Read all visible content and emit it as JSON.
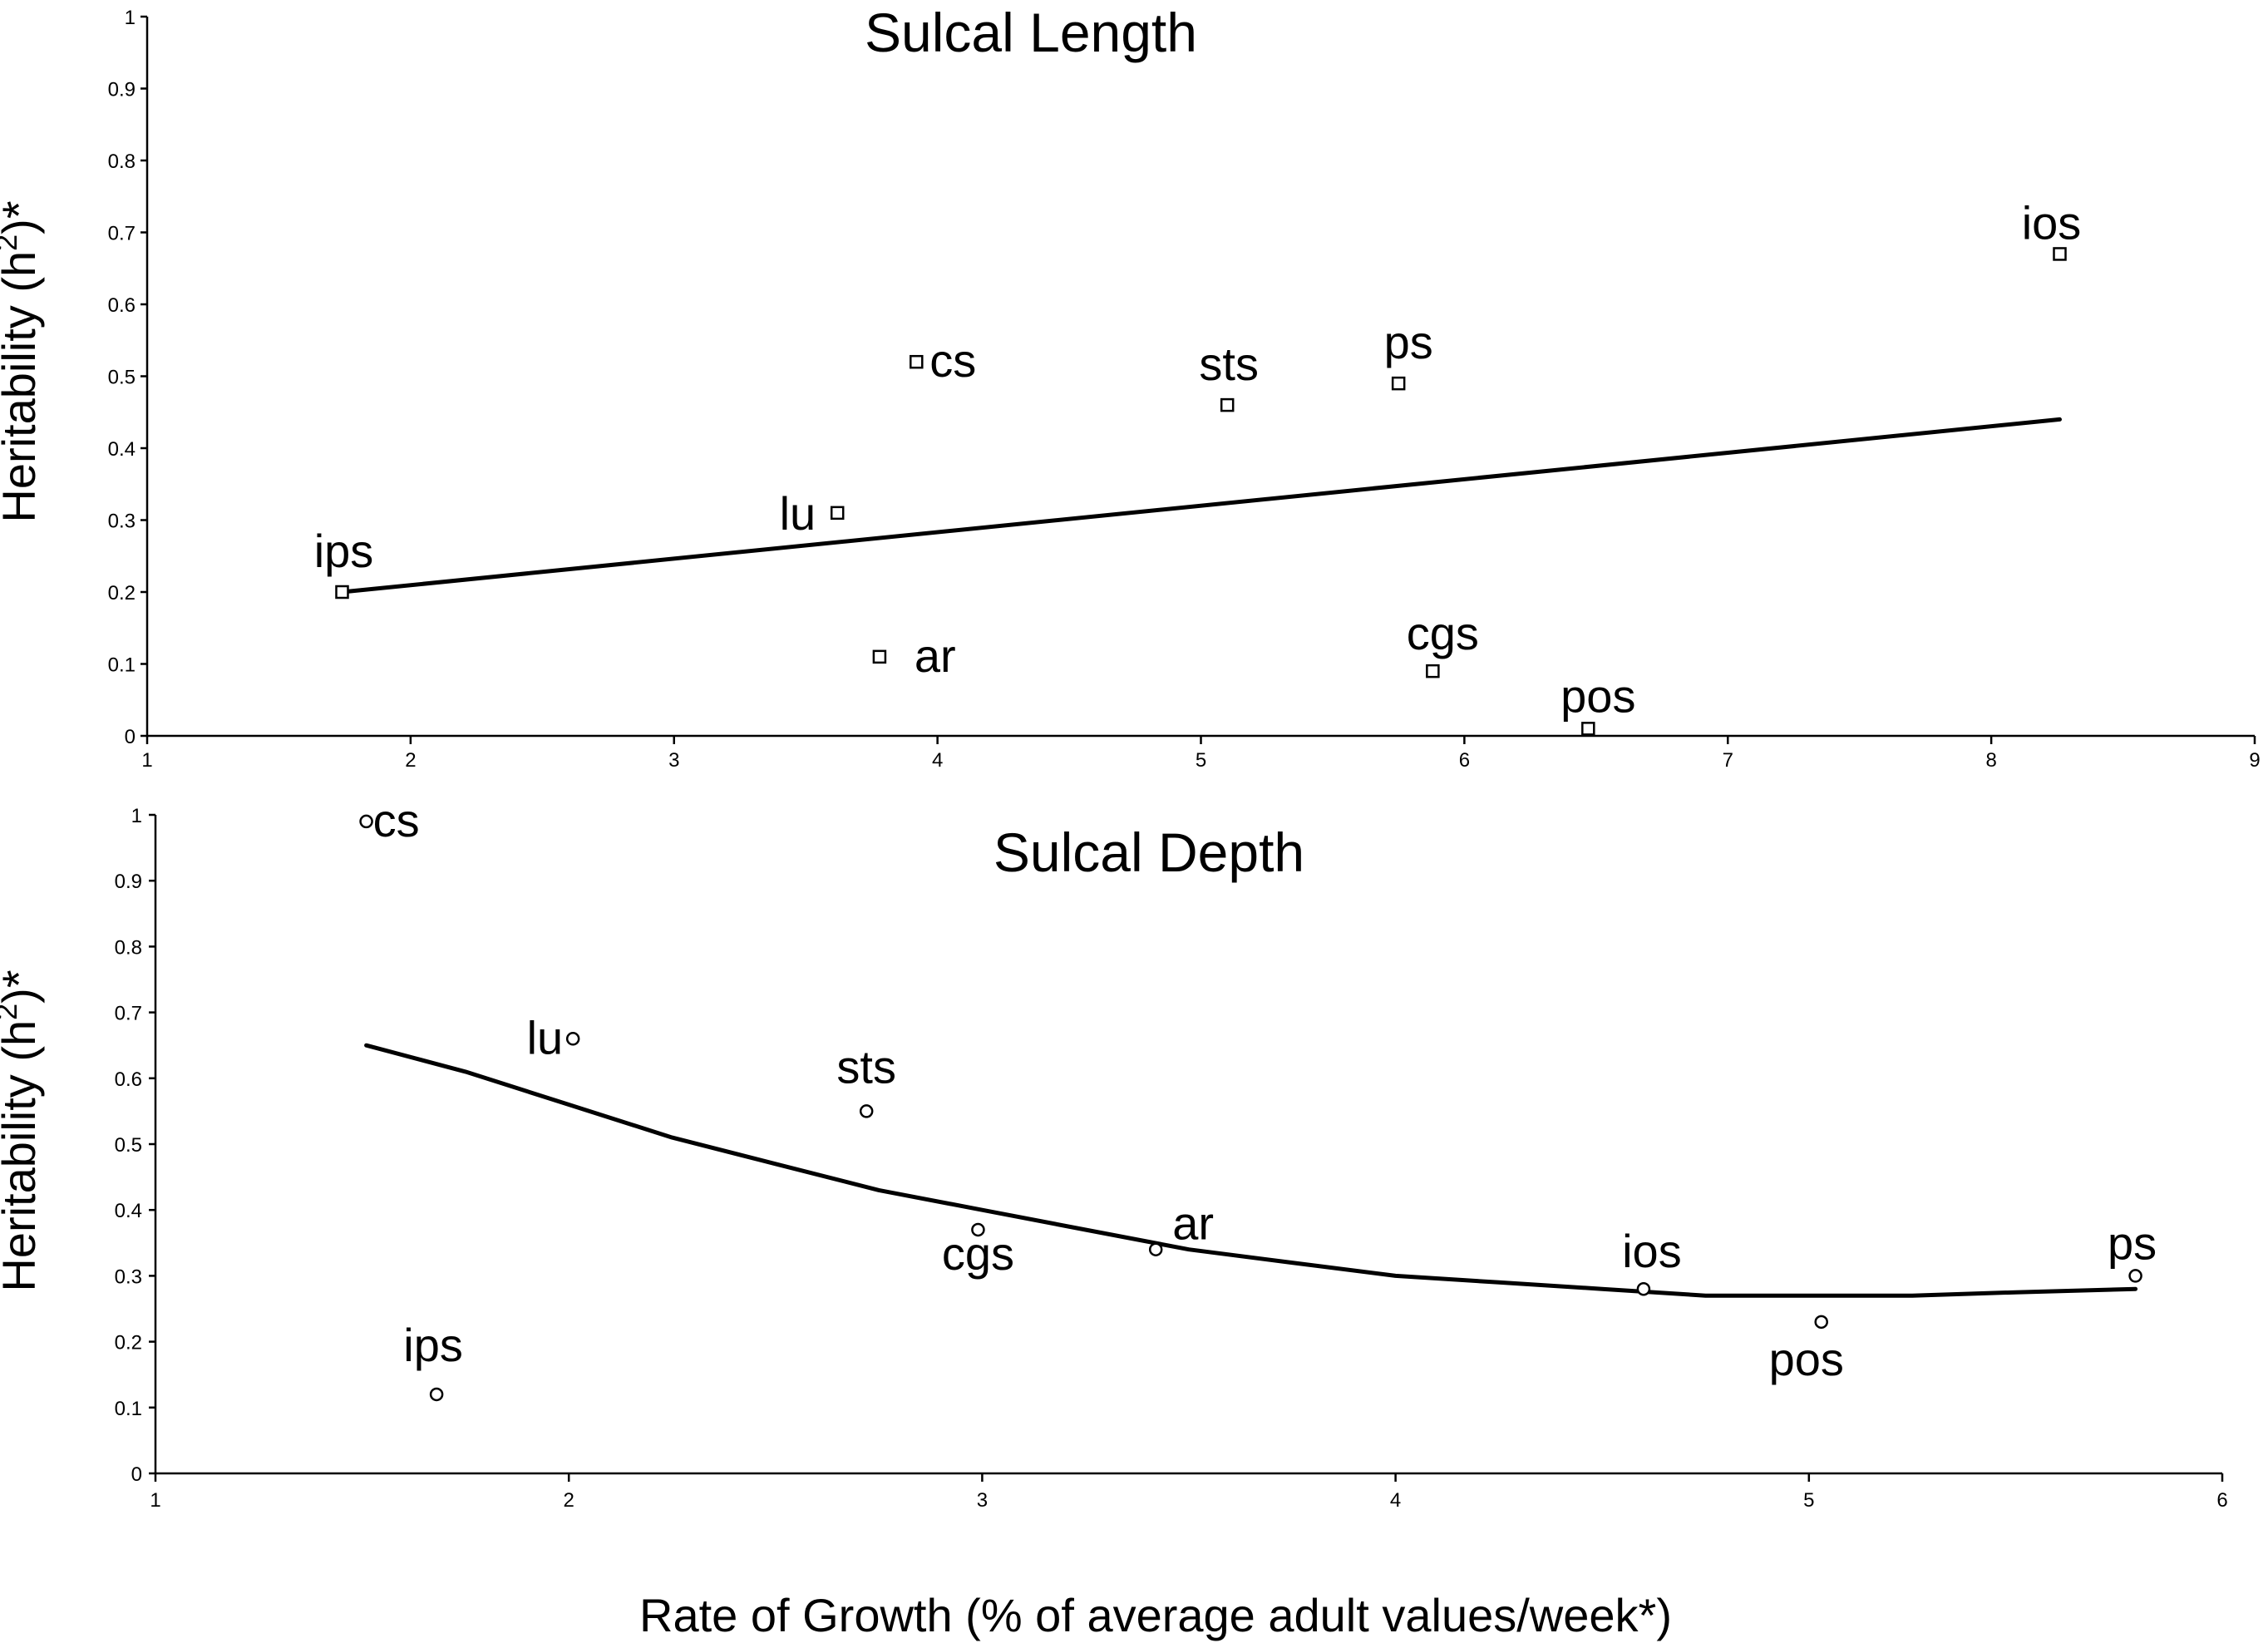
{
  "chart_data": [
    {
      "type": "scatter",
      "title": "Sulcal Length",
      "xlabel": "",
      "ylabel": "Heritability (h²)*",
      "ylabel_parts": {
        "main": "Heritability (h",
        "sup": "2",
        "end": ")*"
      },
      "xlim": [
        1,
        9
      ],
      "ylim": [
        0,
        1
      ],
      "x_ticks": [
        "1",
        "2",
        "3",
        "4",
        "5",
        "6",
        "7",
        "8",
        "9"
      ],
      "y_ticks": [
        "0",
        "0.1",
        "0.2",
        "0.3",
        "0.4",
        "0.5",
        "0.6",
        "0.7",
        "0.8",
        "0.9",
        "1"
      ],
      "marker": "square",
      "points": [
        {
          "label": "ips",
          "x": 1.74,
          "y": 0.2
        },
        {
          "label": "lu",
          "x": 3.62,
          "y": 0.31
        },
        {
          "label": "ar",
          "x": 3.78,
          "y": 0.11
        },
        {
          "label": "cs",
          "x": 3.92,
          "y": 0.52
        },
        {
          "label": "sts",
          "x": 5.1,
          "y": 0.46
        },
        {
          "label": "ps",
          "x": 5.75,
          "y": 0.49
        },
        {
          "label": "cgs",
          "x": 5.88,
          "y": 0.09
        },
        {
          "label": "pos",
          "x": 6.47,
          "y": 0.01
        },
        {
          "label": "ios",
          "x": 8.26,
          "y": 0.67
        }
      ],
      "trendline": {
        "type": "linear",
        "x": [
          1.74,
          8.26
        ],
        "y": [
          0.2,
          0.44
        ]
      }
    },
    {
      "type": "scatter",
      "title": "Sulcal Depth",
      "xlabel": "Rate of Growth (% of average adult values/week*)",
      "ylabel": "Heritability (h²)*",
      "ylabel_parts": {
        "main": "Heritability (h",
        "sup": "2",
        "end": ")*"
      },
      "xlim": [
        1,
        6
      ],
      "ylim": [
        0,
        1
      ],
      "x_ticks": [
        "1",
        "2",
        "3",
        "4",
        "5",
        "6"
      ],
      "y_ticks": [
        "0",
        "0.1",
        "0.2",
        "0.3",
        "0.4",
        "0.5",
        "0.6",
        "0.7",
        "0.8",
        "0.9",
        "1"
      ],
      "marker": "circle",
      "points": [
        {
          "label": "cs",
          "x": 1.51,
          "y": 0.99
        },
        {
          "label": "ips",
          "x": 1.68,
          "y": 0.12
        },
        {
          "label": "lu",
          "x": 2.01,
          "y": 0.66
        },
        {
          "label": "sts",
          "x": 2.72,
          "y": 0.55
        },
        {
          "label": "cgs",
          "x": 2.99,
          "y": 0.37
        },
        {
          "label": "ar",
          "x": 3.42,
          "y": 0.34
        },
        {
          "label": "ios",
          "x": 4.6,
          "y": 0.28
        },
        {
          "label": "pos",
          "x": 5.03,
          "y": 0.23
        },
        {
          "label": "ps",
          "x": 5.79,
          "y": 0.3
        }
      ],
      "trendline": {
        "type": "polynomial",
        "x": [
          1.51,
          1.75,
          2.0,
          2.25,
          2.5,
          2.75,
          3.0,
          3.25,
          3.5,
          3.75,
          4.0,
          4.25,
          4.5,
          4.75,
          5.0,
          5.25,
          5.5,
          5.79
        ],
        "y": [
          0.65,
          0.61,
          0.56,
          0.51,
          0.47,
          0.43,
          0.4,
          0.37,
          0.34,
          0.32,
          0.3,
          0.29,
          0.28,
          0.27,
          0.27,
          0.27,
          0.275,
          0.28
        ]
      }
    }
  ]
}
